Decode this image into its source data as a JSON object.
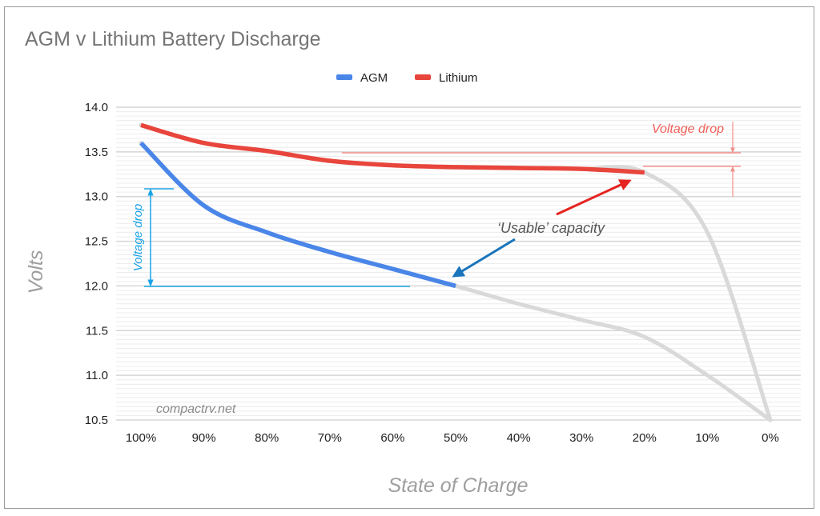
{
  "chart_data": {
    "type": "line",
    "title": "AGM v Lithium Battery Discharge",
    "xlabel": "State of Charge",
    "ylabel": "Volts",
    "categories": [
      "100%",
      "90%",
      "80%",
      "70%",
      "60%",
      "50%",
      "40%",
      "30%",
      "20%",
      "10%",
      "0%"
    ],
    "yticks": [
      "14.0",
      "13.5",
      "13.0",
      "12.5",
      "12.0",
      "11.5",
      "11.0",
      "10.5"
    ],
    "ylim": [
      10.5,
      14.0
    ],
    "grid": true,
    "legend_position": "top",
    "series": [
      {
        "name": "AGM",
        "color": "#4a86e8",
        "usable_until": "50%",
        "values": [
          13.6,
          12.9,
          12.6,
          12.38,
          12.19,
          12.0,
          11.8,
          11.62,
          11.43,
          11.0,
          10.5
        ]
      },
      {
        "name": "Lithium",
        "color": "#e8453c",
        "usable_until": "20%",
        "values": [
          13.8,
          13.6,
          13.51,
          13.4,
          13.35,
          13.33,
          13.32,
          13.31,
          13.27,
          12.6,
          10.5
        ]
      }
    ],
    "unusable_color": "#d9d9d9",
    "annotations": {
      "usable": "‘Usable’ capacity",
      "agm_drop": "Voltage drop",
      "lithium_drop": "Voltage drop",
      "watermark": "compactrv.net"
    }
  }
}
